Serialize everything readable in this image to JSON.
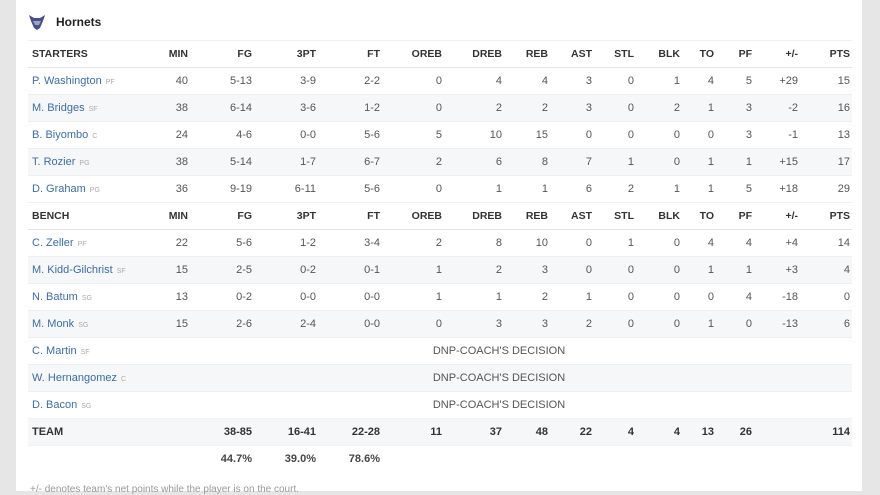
{
  "team": {
    "name": "Hornets",
    "logo_icon": "hornet-logo-icon",
    "brand_color": "#4a4e8f"
  },
  "columns": [
    "MIN",
    "FG",
    "3PT",
    "FT",
    "OREB",
    "DREB",
    "REB",
    "AST",
    "STL",
    "BLK",
    "TO",
    "PF",
    "+/-",
    "PTS"
  ],
  "starters": {
    "label": "STARTERS",
    "players": [
      {
        "name": "P. Washington",
        "pos": "PF",
        "stats": [
          "40",
          "5-13",
          "3-9",
          "2-2",
          "0",
          "4",
          "4",
          "3",
          "0",
          "1",
          "4",
          "5",
          "+29",
          "15"
        ]
      },
      {
        "name": "M. Bridges",
        "pos": "SF",
        "stats": [
          "38",
          "6-14",
          "3-6",
          "1-2",
          "0",
          "2",
          "2",
          "3",
          "0",
          "2",
          "1",
          "3",
          "-2",
          "16"
        ]
      },
      {
        "name": "B. Biyombo",
        "pos": "C",
        "stats": [
          "24",
          "4-6",
          "0-0",
          "5-6",
          "5",
          "10",
          "15",
          "0",
          "0",
          "0",
          "0",
          "3",
          "-1",
          "13"
        ]
      },
      {
        "name": "T. Rozier",
        "pos": "PG",
        "stats": [
          "38",
          "5-14",
          "1-7",
          "6-7",
          "2",
          "6",
          "8",
          "7",
          "1",
          "0",
          "1",
          "1",
          "+15",
          "17"
        ]
      },
      {
        "name": "D. Graham",
        "pos": "PG",
        "stats": [
          "36",
          "9-19",
          "6-11",
          "5-6",
          "0",
          "1",
          "1",
          "6",
          "2",
          "1",
          "1",
          "5",
          "+18",
          "29"
        ]
      }
    ]
  },
  "bench": {
    "label": "BENCH",
    "players": [
      {
        "name": "C. Zeller",
        "pos": "PF",
        "stats": [
          "22",
          "5-6",
          "1-2",
          "3-4",
          "2",
          "8",
          "10",
          "0",
          "1",
          "0",
          "4",
          "4",
          "+4",
          "14"
        ]
      },
      {
        "name": "M. Kidd-Gilchrist",
        "pos": "SF",
        "stats": [
          "15",
          "2-5",
          "0-2",
          "0-1",
          "1",
          "2",
          "3",
          "0",
          "0",
          "0",
          "1",
          "1",
          "+3",
          "4"
        ]
      },
      {
        "name": "N. Batum",
        "pos": "SG",
        "stats": [
          "13",
          "0-2",
          "0-0",
          "0-0",
          "1",
          "1",
          "2",
          "1",
          "0",
          "0",
          "0",
          "4",
          "-18",
          "0"
        ]
      },
      {
        "name": "M. Monk",
        "pos": "SG",
        "stats": [
          "15",
          "2-6",
          "2-4",
          "0-0",
          "0",
          "3",
          "3",
          "2",
          "0",
          "0",
          "1",
          "0",
          "-13",
          "6"
        ]
      },
      {
        "name": "C. Martin",
        "pos": "SF",
        "dnp": "DNP-COACH'S DECISION"
      },
      {
        "name": "W. Hernangomez",
        "pos": "C",
        "dnp": "DNP-COACH'S DECISION"
      },
      {
        "name": "D. Bacon",
        "pos": "SG",
        "dnp": "DNP-COACH'S DECISION"
      }
    ]
  },
  "totals": {
    "label": "TEAM",
    "stats": [
      "",
      "38-85",
      "16-41",
      "22-28",
      "11",
      "37",
      "48",
      "22",
      "4",
      "4",
      "13",
      "26",
      "",
      "114"
    ]
  },
  "percentages": [
    "",
    "44.7%",
    "39.0%",
    "78.6%",
    "",
    "",
    "",
    "",
    "",
    "",
    "",
    "",
    "",
    ""
  ],
  "footnote": "+/- denotes team's net points while the player is on the court."
}
